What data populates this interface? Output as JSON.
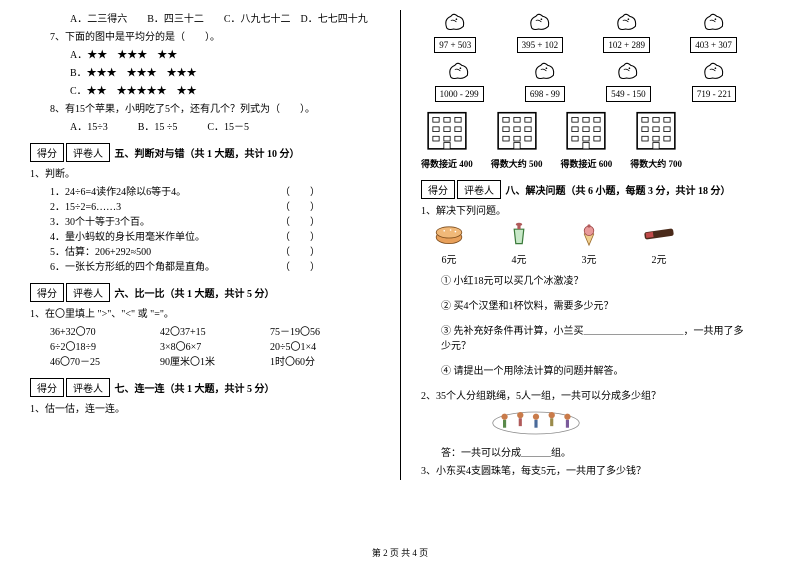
{
  "q6_options": "A．二三得六　　B．四三十二　　C．八九七十二　D．七七四十九",
  "q7_stem": "7、下面的图中是平均分的是（　　）。",
  "q7_a": "A．★★　★★★　★★",
  "q7_b": "B．★★★　★★★　★★★",
  "q7_c": "C．★★　★★★★★　★★",
  "q8_stem": "8、有15个苹果，小明吃了5个，还有几个？列式为（　　）。",
  "q8_options": "A．15÷3　　　B．15 ÷5　　　C．15－5",
  "score_label": "得分",
  "reviewer_label": "评卷人",
  "sec5_title": "五、判断对与错（共 1 大题，共计 10 分）",
  "j_head": "1、判断。",
  "j1": "1．24÷6=4读作24除以6等于4。",
  "j2": "2．15÷2=6……3",
  "j3": "3．30个十等于3个百。",
  "j4": "4．量小蚂蚁的身长用毫米作单位。",
  "j5": "5．估算：206+292≈500",
  "j6": "6．一张长方形纸的四个角都是直角。",
  "paren": "（　　）",
  "sec6_title": "六、比一比（共 1 大题，共计 5 分）",
  "c_head": "1、在〇里填上 \">\"、\"<\" 或 \"=\"。",
  "c1a": "36+32〇70",
  "c1b": "42〇37+15",
  "c1c": "75－19〇56",
  "c2a": "6÷2〇18÷9",
  "c2b": "3×8〇6×7",
  "c2c": "20÷5〇1×4",
  "c3a": "46〇70－25",
  "c3b": "90厘米〇1米",
  "c3c": "1时〇60分",
  "sec7_title": "七、连一连（共 1 大题，共计 5 分）",
  "sec7_head": "1、估一估，连一连。",
  "sec8_title": "八、解决问题（共 6 小题，每题 3 分，共计 18 分）",
  "sec8_head": "1、解决下列问题。",
  "birds": [
    {
      "expr": "97 + 503"
    },
    {
      "expr": "395 + 102"
    },
    {
      "expr": "102 + 289"
    },
    {
      "expr": "403 + 307"
    },
    {
      "expr": "1000 - 299"
    },
    {
      "expr": "698 - 99"
    },
    {
      "expr": "549 - 150"
    },
    {
      "expr": "719 - 221"
    }
  ],
  "buildings": [
    {
      "label": "得数接近 400"
    },
    {
      "label": "得数大约 500"
    },
    {
      "label": "得数接近 600"
    },
    {
      "label": "得数大约 700"
    }
  ],
  "items": [
    {
      "price": "6元",
      "color": "#d97b2e"
    },
    {
      "price": "4元",
      "color": "#3a7a3a"
    },
    {
      "price": "3元",
      "color": "#c96b6b"
    },
    {
      "price": "2元",
      "color": "#4a2a1a"
    }
  ],
  "p1": "① 小红18元可以买几个冰激凌？",
  "p2": "② 买4个汉堡和1杯饮料，需要多少元？",
  "p3": "③ 先补充好条件再计算，小兰买＿＿＿＿＿＿＿＿＿＿，一共用了多少元？",
  "p4": "④ 请提出一个用除法计算的问题并解答。",
  "q2": "2、35个人分组跳绳，5人一组，一共可以分成多少组？",
  "q2_ans": "答：一共可以分成＿＿＿组。",
  "q3": "3、小东买4支圆珠笔，每支5元，一共用了多少钱？",
  "footer": "第 2 页  共 4 页"
}
